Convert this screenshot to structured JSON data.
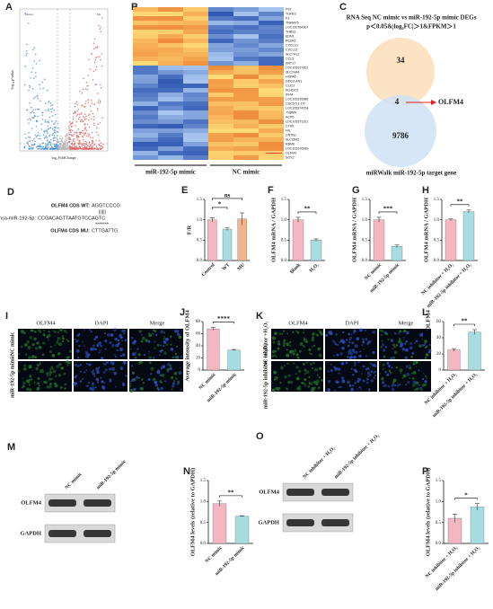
{
  "volcano": {
    "letter": "A",
    "labels": [
      "Down",
      "Up"
    ],
    "xlabel": "log₂ FoldChange",
    "ylabel": "-log₁₀ p-value"
  },
  "heatmap": {
    "letter": "B",
    "genes": [
      "FST",
      "TGFB3",
      "F3",
      "TNFAIP6",
      "LOC100784307",
      "THBS1",
      "EDN1",
      "PCSK1",
      "CXCL10",
      "CXCL11",
      "SLC7A11",
      "CCL5",
      "KRT17",
      "LOC105377851",
      "SLC24A4",
      "HSPA6",
      "GDCZ-AS1",
      "CLIC3",
      "KLHDC3",
      "IFI44",
      "LOC105378986",
      "CDC57L1-DT",
      "LOC105374254",
      "TSBM4",
      "ACP5",
      "LOC105371151",
      "CTSK",
      "HIL",
      "CNTN1",
      "SLC26A2",
      "RBM6",
      "LOC105376989",
      "OLFM4",
      "SOX2"
    ],
    "groups": [
      "miR-192-5p mimic",
      "NC mimic"
    ]
  },
  "venn": {
    "letter": "C",
    "title": "RNA Seq NC mimic vs miR-192-5p mimic DEGs",
    "criteria": "p＜0.05&|log₂FC|＞1&FPKM＞1",
    "counts": [
      34,
      4,
      9786
    ],
    "highlight": "OLFM4",
    "target": "miRWalk miR-192-5p target gene"
  },
  "sequences": {
    "letter": "D",
    "wt_label": "OLFM4 CDS WT:",
    "wt_seq": "AGGTCCCG",
    "mir_label": "hsa-miR-192-5p:",
    "mir_seq": "CCGACAGTTAATGTCCAGTC",
    "pairs": "||||||",
    "stars": "*******",
    "mu_label": "OLFM4 CDS MU:",
    "mu_seq": "CTTGATTG"
  },
  "bar_panels": [
    {
      "letter": "E",
      "ylabel": "F/R",
      "categories": [
        "Control",
        "WT",
        "MU"
      ],
      "values": [
        1.0,
        0.77,
        1.02
      ],
      "errors": [
        0.05,
        0.03,
        0.15
      ],
      "colors": [
        "#f4b6c2",
        "#a8dde0",
        "#f4b48a"
      ],
      "ylim": [
        0,
        1.5
      ],
      "yticks": [
        {
          "value": 0,
          "label": "0.0"
        },
        {
          "value": 0.5,
          "label": "0.5"
        },
        {
          "value": 1,
          "label": "1.0"
        },
        {
          "value": 1.5,
          "label": "1.5"
        }
      ],
      "significance": [
        {
          "pair": [
            0,
            1
          ],
          "label": "*"
        },
        {
          "pair": [
            0,
            2
          ],
          "label": "ns"
        }
      ]
    },
    {
      "letter": "F",
      "ylabel": "OLFM4 mRNA / GAPDH",
      "categories": [
        "Blank",
        "H₂O₂"
      ],
      "values": [
        1.0,
        0.5
      ],
      "errors": [
        0.06,
        0.03
      ],
      "colors": [
        "#f4b6c2",
        "#a8dde0"
      ],
      "ylim": [
        0,
        1.5
      ],
      "yticks": [
        {
          "value": 0,
          "label": "0.0"
        },
        {
          "value": 0.5,
          "label": "0.5"
        },
        {
          "value": 1,
          "label": "1.0"
        },
        {
          "value": 1.5,
          "label": "1.5"
        }
      ],
      "significance": [
        {
          "pair": [
            0,
            1
          ],
          "label": "**"
        }
      ]
    },
    {
      "letter": "G",
      "ylabel": "OLFM4 mRNA / GAPDH",
      "categories": [
        "NC mimic",
        "miR-192-5p mimic"
      ],
      "values": [
        1.0,
        0.35
      ],
      "errors": [
        0.06,
        0.03
      ],
      "colors": [
        "#f4b6c2",
        "#a8dde0"
      ],
      "ylim": [
        0,
        1.5
      ],
      "yticks": [
        {
          "value": 0,
          "label": "0.0"
        },
        {
          "value": 0.5,
          "label": "0.5"
        },
        {
          "value": 1,
          "label": "1.0"
        },
        {
          "value": 1.5,
          "label": "1.5"
        }
      ],
      "significance": [
        {
          "pair": [
            0,
            1
          ],
          "label": "***"
        }
      ]
    },
    {
      "letter": "H",
      "ylabel": "OLFM4 mRNA / GAPDH",
      "categories": [
        "NC inhibitor + H₂O₂",
        "miR-192-5p inhibitor + H₂O₂"
      ],
      "values": [
        1.0,
        1.2
      ],
      "errors": [
        0.02,
        0.04
      ],
      "colors": [
        "#f4b6c2",
        "#a8dde0"
      ],
      "ylim": [
        0,
        1.5
      ],
      "yticks": [
        {
          "value": 0,
          "label": "0.0"
        },
        {
          "value": 0.5,
          "label": "0.5"
        },
        {
          "value": 1,
          "label": "1.0"
        },
        {
          "value": 1.5,
          "label": "1.5"
        }
      ],
      "significance": [
        {
          "pair": [
            0,
            1
          ],
          "label": "**"
        }
      ]
    },
    {
      "letter": "J",
      "ylabel": "Average intensity of OLFM4",
      "categories": [
        "NC mimic",
        "miR-192-5p mimic"
      ],
      "values": [
        68,
        33
      ],
      "errors": [
        2.5,
        1
      ],
      "colors": [
        "#f4b6c2",
        "#a8dde0"
      ],
      "ylim": [
        0,
        80
      ],
      "yticks": [
        0,
        20,
        40,
        60,
        80
      ],
      "significance": [
        {
          "pair": [
            0,
            1
          ],
          "label": "****"
        }
      ]
    },
    {
      "letter": "L",
      "ylabel": "Average intensity of OLFM4",
      "categories": [
        "NC inhibitor + H₂O₂",
        "miR-192-5p inhibitor + H₂O₂"
      ],
      "values": [
        25,
        47
      ],
      "errors": [
        1.5,
        3
      ],
      "colors": [
        "#f4b6c2",
        "#a8dde0"
      ],
      "ylim": [
        0,
        60
      ],
      "yticks": [
        0,
        20,
        40,
        60
      ],
      "significance": [
        {
          "pair": [
            0,
            1
          ],
          "label": "**"
        }
      ]
    },
    {
      "letter": "N",
      "ylabel": "OLFM4 levels (relative to GAPDH)",
      "categories": [
        "NC mimic",
        "miR-192-5p mimic"
      ],
      "values": [
        0.95,
        0.65
      ],
      "errors": [
        0.06,
        0.01
      ],
      "colors": [
        "#f4b6c2",
        "#a8dde0"
      ],
      "ylim": [
        0,
        1.5
      ],
      "yticks": [
        {
          "value": 0,
          "label": "0.0"
        },
        {
          "value": 0.5,
          "label": "0.5"
        },
        {
          "value": 1,
          "label": "1.0"
        },
        {
          "value": 1.5,
          "label": "1.5"
        }
      ],
      "significance": [
        {
          "pair": [
            0,
            1
          ],
          "label": "**"
        }
      ]
    },
    {
      "letter": "P",
      "ylabel": "OLFM4 levels (relative to GAPDH)",
      "categories": [
        "NC inhibitor + H₂O₂",
        "miR-192-5p inhibitor + H₂O₂"
      ],
      "values": [
        0.6,
        0.87
      ],
      "errors": [
        0.1,
        0.08
      ],
      "colors": [
        "#f4b6c2",
        "#a8dde0"
      ],
      "ylim": [
        0,
        1.5
      ],
      "yticks": [
        {
          "value": 0,
          "label": "0.0"
        },
        {
          "value": 0.5,
          "label": "0.5"
        },
        {
          "value": 1,
          "label": "1.0"
        },
        {
          "value": 1.5,
          "label": "1.5"
        }
      ],
      "significance": [
        {
          "pair": [
            0,
            1
          ],
          "label": "*"
        }
      ]
    }
  ],
  "image_panels": [
    {
      "letter": "I",
      "columns": [
        "OLFM4",
        "DAPI",
        "Merge"
      ],
      "rows": [
        "NC mimic",
        "miR-192-5p mimic"
      ]
    },
    {
      "letter": "K",
      "columns": [
        "OLFM4",
        "DAPI",
        "Merge"
      ],
      "rows": [
        "NC inhibitor +H₂O₂",
        "miR-192-5p inhibitor +H₂O₂"
      ]
    }
  ],
  "blot_panels": [
    {
      "letter": "M",
      "lanes": [
        "NC mimic",
        "miR-192-5p mimic"
      ],
      "proteins": [
        "OLFM4",
        "GAPDH"
      ]
    },
    {
      "letter": "O",
      "lanes": [
        "NC inhibitor + H₂O₂",
        "miR-192-5p inhibitor + H₂O₂"
      ],
      "proteins": [
        "OLFM4",
        "GAPDH"
      ]
    }
  ]
}
